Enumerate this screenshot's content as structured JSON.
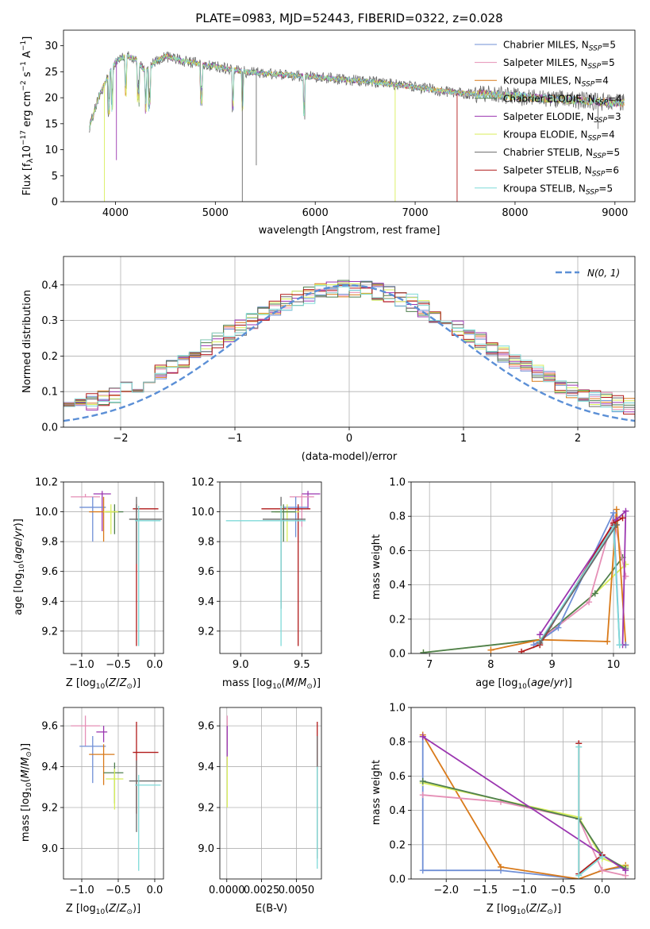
{
  "colors": {
    "Chabrier MILES": "#6f8fd6",
    "Salpeter MILES": "#e58fb6",
    "Kroupa MILES": "#d97a1a",
    "Chabrier ELODIE": "#4f7f4f",
    "Salpeter ELODIE": "#9b36b0",
    "Kroupa ELODIE": "#d8ee5a",
    "Chabrier STELIB": "#6a6a6a",
    "Salpeter STELIB": "#b11a1a",
    "Kroupa STELIB": "#7fdad8",
    "normal": "#5b8fd6"
  },
  "chart_data": [
    {
      "type": "line",
      "title": "PLATE=0983, MJD=52443, FIBERID=0322, z=0.028",
      "xlabel": "wavelength [Angstrom, rest frame]",
      "ylabel": "Flux [f_λ10^-17 erg cm^-2 s^-1 A^-1]",
      "xlim": [
        3480,
        9200
      ],
      "ylim": [
        0,
        33
      ],
      "xticks": [
        "4000",
        "5000",
        "6000",
        "7000",
        "8000",
        "9000"
      ],
      "yticks": [
        "0",
        "5",
        "10",
        "15",
        "20",
        "25",
        "30"
      ],
      "legend_position": "top-right",
      "series": [
        {
          "name": "Chabrier MILES",
          "nssp": "5"
        },
        {
          "name": "Salpeter MILES",
          "nssp": "5"
        },
        {
          "name": "Kroupa MILES",
          "nssp": "4"
        },
        {
          "name": "Chabrier ELODIE",
          "nssp": "4"
        },
        {
          "name": "Salpeter ELODIE",
          "nssp": "3"
        },
        {
          "name": "Kroupa ELODIE",
          "nssp": "4"
        },
        {
          "name": "Chabrier STELIB",
          "nssp": "5"
        },
        {
          "name": "Salpeter STELIB",
          "nssp": "6"
        },
        {
          "name": "Kroupa STELIB",
          "nssp": "5"
        }
      ],
      "continuum": {
        "x": [
          3750,
          3850,
          3950,
          4000,
          4100,
          4200,
          4300,
          4400,
          4500,
          4700,
          5000,
          5300,
          5600,
          6000,
          6300,
          6600,
          7000,
          7400,
          7800,
          8200,
          8600,
          9000
        ],
        "y": [
          15,
          21,
          25,
          27,
          28,
          27.5,
          25,
          27,
          28,
          27,
          26,
          25,
          24.5,
          24,
          23.5,
          23,
          22,
          21,
          20.5,
          20,
          19.5,
          19
        ]
      }
    },
    {
      "type": "line",
      "xlabel": "(data-model)/error",
      "ylabel": "Normed distribution",
      "xlim": [
        -2.5,
        2.5
      ],
      "ylim": [
        0,
        0.48
      ],
      "xticks": [
        "−2",
        "−1",
        "0",
        "1",
        "2"
      ],
      "yticks": [
        "0.0",
        "0.1",
        "0.2",
        "0.3",
        "0.4"
      ],
      "legend_position": "top-right",
      "normal_label": "N(0, 1)"
    },
    {
      "type": "scatter",
      "xlabel": "Z [log10(Z/Z⊙)]",
      "ylabel": "age  [log10(age/yr)]",
      "xlim": [
        -1.25,
        0.12
      ],
      "ylim": [
        9.05,
        10.2
      ],
      "xticks": [
        "−1.0",
        "−0.5",
        "0.0"
      ],
      "yticks": [
        "9.2",
        "9.4",
        "9.6",
        "9.8",
        "10.0",
        "10.2"
      ]
    },
    {
      "type": "scatter",
      "xlabel": "mass [log10(M/M⊙)]",
      "xlim": [
        8.83,
        9.66
      ],
      "ylim": [
        9.05,
        10.2
      ],
      "xticks": [
        "9.0",
        "9.5"
      ],
      "yticks": [
        "9.2",
        "9.4",
        "9.6",
        "9.8",
        "10.0",
        "10.2"
      ]
    },
    {
      "type": "line",
      "xlabel": "age  [log10(age/yr)]",
      "ylabel": "mass weight",
      "xlim": [
        6.7,
        10.35
      ],
      "ylim": [
        0,
        1
      ],
      "xticks": [
        "7",
        "8",
        "9",
        "10"
      ],
      "yticks": [
        "0.0",
        "0.2",
        "0.4",
        "0.6",
        "0.8",
        "1.0"
      ]
    },
    {
      "type": "scatter",
      "xlabel": "Z [log10(Z/Z⊙)]",
      "ylabel": "mass [log10(M/M⊙)]",
      "xlim": [
        -1.25,
        0.12
      ],
      "ylim": [
        8.85,
        9.69
      ],
      "xticks": [
        "−1.0",
        "−0.5",
        "0.0"
      ],
      "yticks": [
        "9.0",
        "9.2",
        "9.4",
        "9.6"
      ]
    },
    {
      "type": "scatter",
      "xlabel": "E(B-V)",
      "xlim": [
        -0.0005,
        0.0068
      ],
      "ylim": [
        8.85,
        9.69
      ],
      "xticks": [
        "0.0000",
        "0.0025",
        "0.0050"
      ],
      "yticks": [
        "9.0",
        "9.2",
        "9.4",
        "9.6"
      ]
    },
    {
      "type": "line",
      "xlabel": "Z [log10(Z/Z⊙)]",
      "ylabel": "mass weight",
      "xlim": [
        -2.45,
        0.42
      ],
      "ylim": [
        0,
        1
      ],
      "xticks": [
        "−2.0",
        "−1.5",
        "−1.0",
        "−0.5",
        "0.0"
      ],
      "yticks": [
        "0.0",
        "0.2",
        "0.4",
        "0.6",
        "0.8",
        "1.0"
      ]
    }
  ]
}
